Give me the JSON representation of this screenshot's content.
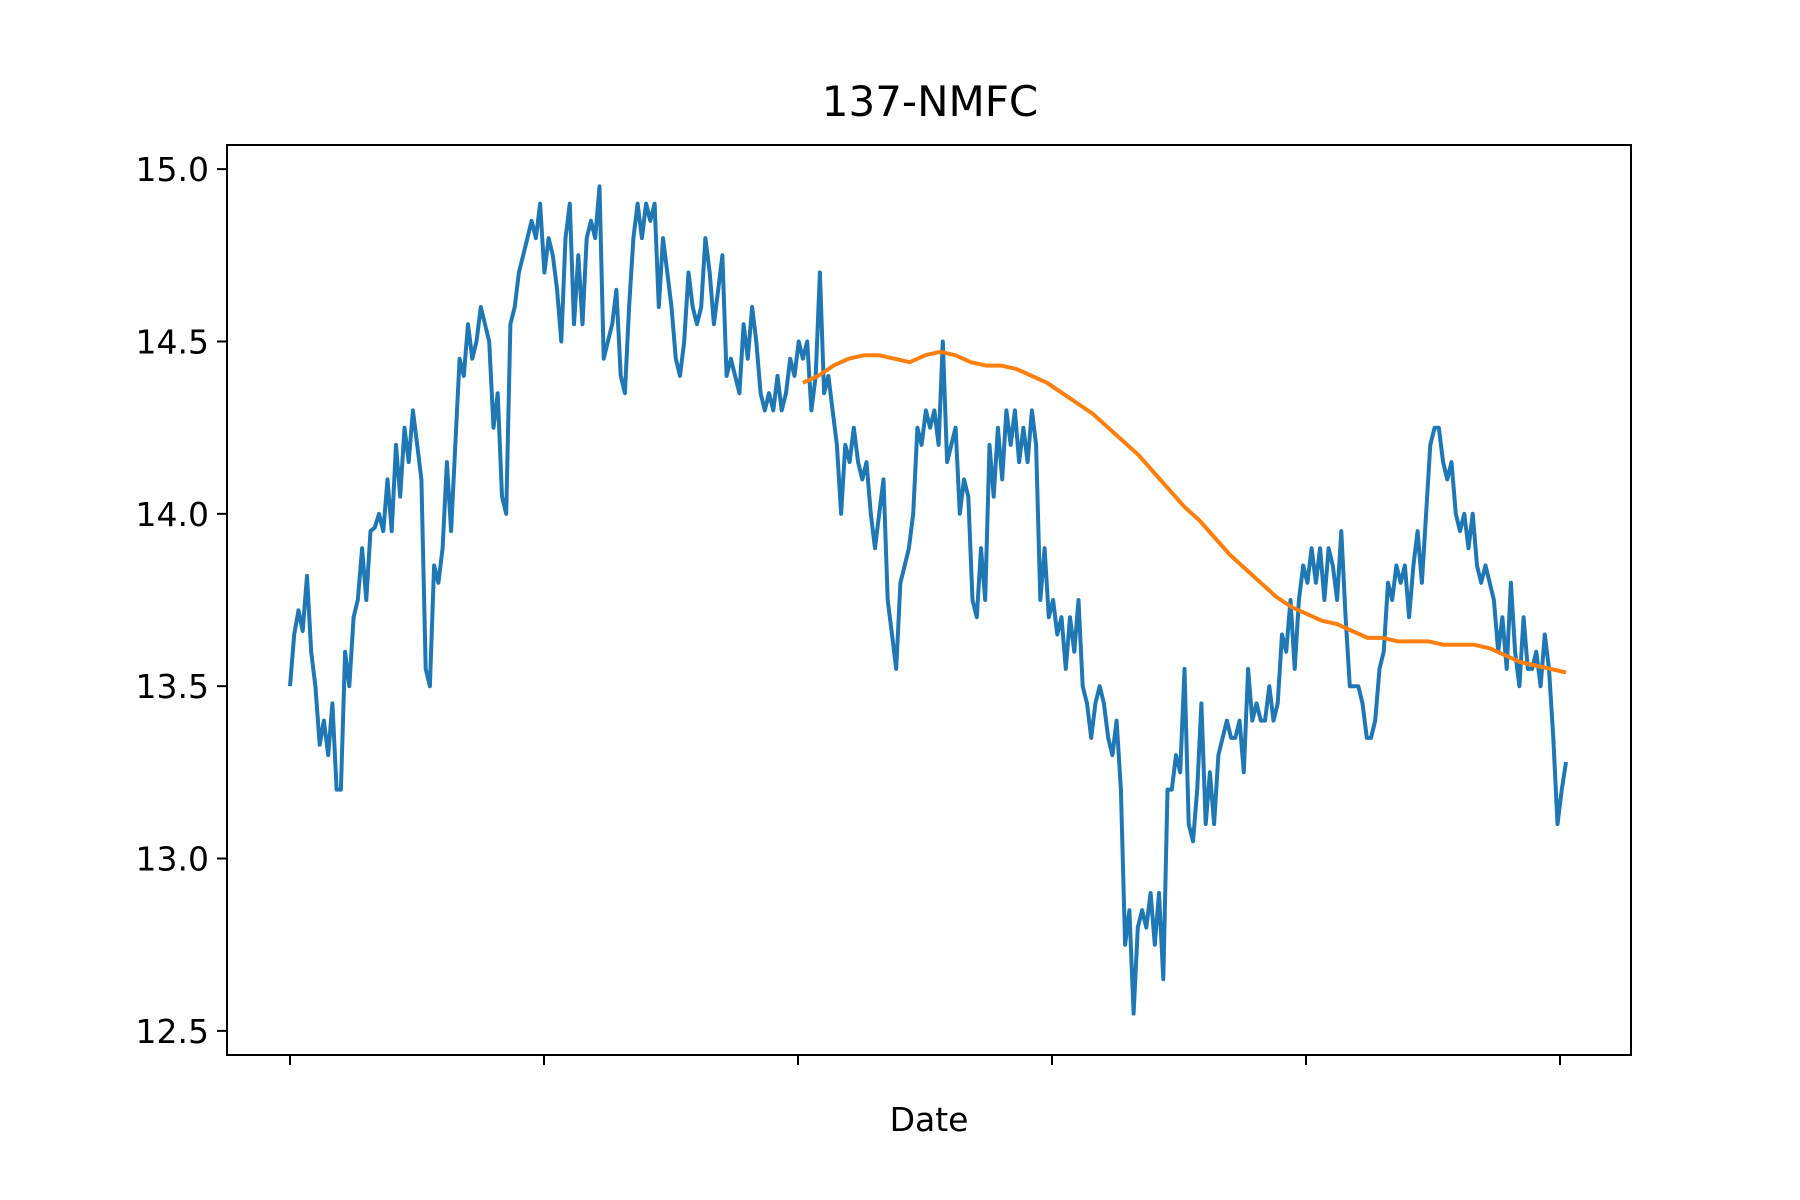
{
  "chart_data": {
    "type": "line",
    "title": "137-NMFC",
    "xlabel": "Date",
    "ylabel": "",
    "x_ticks": [
      "",
      "",
      "",
      "",
      "",
      ""
    ],
    "ylim": [
      12.43,
      15.07
    ],
    "yticks": [
      12.5,
      13.0,
      13.5,
      14.0,
      14.5,
      15.0
    ],
    "ytick_labels": [
      "12.5",
      "13.0",
      "13.5",
      "14.0",
      "14.5",
      "15.0"
    ],
    "grid": false,
    "legend": "none",
    "colors": {
      "price": "#1f77b4",
      "moving_average": "#ff7f0e"
    },
    "series": [
      {
        "values": [
          13.5,
          13.65,
          13.72,
          13.66,
          13.82,
          13.6,
          13.5,
          13.33,
          13.4,
          13.3,
          13.45,
          13.2,
          13.2,
          13.6,
          13.5,
          13.7,
          13.75,
          13.9,
          13.75,
          13.95,
          13.96,
          14.0,
          13.95,
          14.1,
          13.95,
          14.2,
          14.05,
          14.25,
          14.15,
          14.3,
          14.2,
          14.1,
          13.55,
          13.5,
          13.85,
          13.8,
          13.9,
          14.15,
          13.95,
          14.2,
          14.45,
          14.4,
          14.55,
          14.45,
          14.5,
          14.6,
          14.55,
          14.5,
          14.25,
          14.35,
          14.05,
          14.0,
          14.55,
          14.6,
          14.7,
          14.75,
          14.8,
          14.85,
          14.8,
          14.9,
          14.7,
          14.8,
          14.75,
          14.65,
          14.5,
          14.8,
          14.9,
          14.55,
          14.75,
          14.55,
          14.8,
          14.85,
          14.8,
          14.95,
          14.45,
          14.5,
          14.55,
          14.65,
          14.4,
          14.35,
          14.6,
          14.8,
          14.9,
          14.8,
          14.9,
          14.85,
          14.9,
          14.6,
          14.8,
          14.7,
          14.6,
          14.45,
          14.4,
          14.5,
          14.7,
          14.6,
          14.55,
          14.6,
          14.8,
          14.7,
          14.55,
          14.65,
          14.75,
          14.4,
          14.45,
          14.4,
          14.35,
          14.55,
          14.45,
          14.6,
          14.5,
          14.35,
          14.3,
          14.35,
          14.3,
          14.4,
          14.3,
          14.35,
          14.45,
          14.4,
          14.5,
          14.45,
          14.5,
          14.3,
          14.4,
          14.7,
          14.35,
          14.4,
          14.3,
          14.2,
          14.0,
          14.2,
          14.15,
          14.25,
          14.15,
          14.1,
          14.15,
          14.0,
          13.9,
          14.0,
          14.1,
          13.75,
          13.65,
          13.55,
          13.8,
          13.85,
          13.9,
          14.0,
          14.25,
          14.2,
          14.3,
          14.25,
          14.3,
          14.2,
          14.5,
          14.15,
          14.2,
          14.25,
          14.0,
          14.1,
          14.05,
          13.75,
          13.7,
          13.9,
          13.75,
          14.2,
          14.05,
          14.25,
          14.1,
          14.3,
          14.2,
          14.3,
          14.15,
          14.25,
          14.15,
          14.3,
          14.2,
          13.75,
          13.9,
          13.7,
          13.75,
          13.65,
          13.7,
          13.55,
          13.7,
          13.6,
          13.75,
          13.5,
          13.45,
          13.35,
          13.45,
          13.5,
          13.45,
          13.35,
          13.3,
          13.4,
          13.2,
          12.75,
          12.85,
          12.55,
          12.8,
          12.85,
          12.8,
          12.9,
          12.75,
          12.9,
          12.65,
          13.2,
          13.2,
          13.3,
          13.25,
          13.55,
          13.1,
          13.05,
          13.2,
          13.45,
          13.1,
          13.25,
          13.1,
          13.3,
          13.35,
          13.4,
          13.35,
          13.35,
          13.4,
          13.25,
          13.55,
          13.4,
          13.45,
          13.4,
          13.4,
          13.5,
          13.4,
          13.45,
          13.65,
          13.6,
          13.75,
          13.55,
          13.75,
          13.85,
          13.8,
          13.9,
          13.8,
          13.9,
          13.75,
          13.9,
          13.85,
          13.75,
          13.95,
          13.7,
          13.5,
          13.5,
          13.5,
          13.45,
          13.35,
          13.35,
          13.4,
          13.55,
          13.6,
          13.8,
          13.75,
          13.85,
          13.8,
          13.85,
          13.7,
          13.85,
          13.95,
          13.8,
          14.0,
          14.2,
          14.25,
          14.25,
          14.15,
          14.1,
          14.15,
          14.0,
          13.95,
          14.0,
          13.9,
          14.0,
          13.85,
          13.8,
          13.85,
          13.8,
          13.75,
          13.6,
          13.7,
          13.55,
          13.8,
          13.6,
          13.5,
          13.7,
          13.55,
          13.55,
          13.6,
          13.5,
          13.65,
          13.55,
          13.35,
          13.1,
          13.2,
          13.28
        ]
      },
      {
        "values": [
          14.38,
          14.4,
          14.43,
          14.45,
          14.46,
          14.46,
          14.45,
          14.44,
          14.46,
          14.47,
          14.46,
          14.44,
          14.43,
          14.43,
          14.42,
          14.4,
          14.38,
          14.35,
          14.32,
          14.29,
          14.25,
          14.21,
          14.17,
          14.12,
          14.07,
          14.02,
          13.98,
          13.93,
          13.88,
          13.84,
          13.8,
          13.76,
          13.73,
          13.71,
          13.69,
          13.68,
          13.66,
          13.64,
          13.64,
          13.63,
          13.63,
          13.63,
          13.62,
          13.62,
          13.62,
          13.61,
          13.59,
          13.57,
          13.56,
          13.55,
          13.54
        ]
      }
    ]
  }
}
